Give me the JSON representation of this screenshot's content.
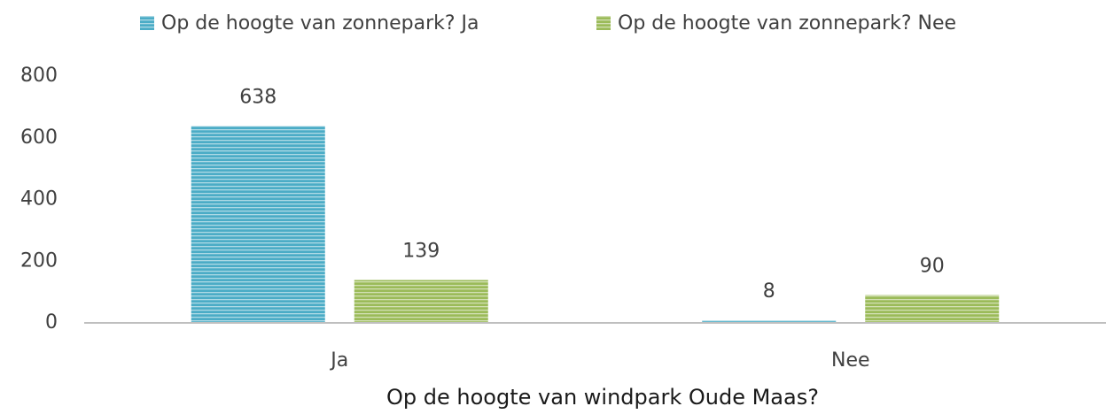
{
  "chart_data": {
    "type": "bar",
    "categories": [
      "Ja",
      "Nee"
    ],
    "series": [
      {
        "name": "Op de hoogte van zonnepark? Ja",
        "color": "#4bacc6",
        "values": [
          638,
          8
        ]
      },
      {
        "name": "Op de hoogte van zonnepark? Nee",
        "color": "#9bbb59",
        "values": [
          139,
          90
        ]
      }
    ],
    "xlabel": "Op de hoogte van windpark Oude Maas?",
    "ylim": [
      0,
      800
    ],
    "yticks": [
      0,
      200,
      400,
      600,
      800
    ],
    "grid": false,
    "legend": "top"
  }
}
